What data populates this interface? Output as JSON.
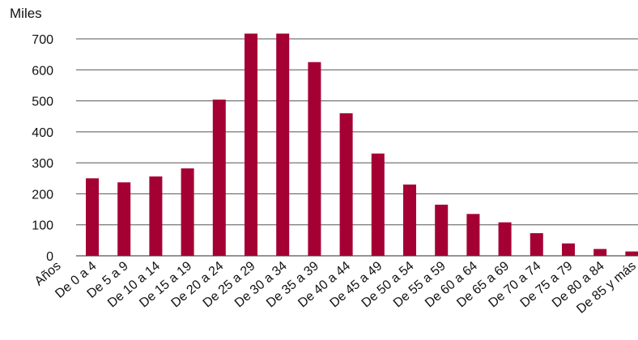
{
  "colors": {
    "bar": "#A50034",
    "grid": "#555555",
    "text": "#111111",
    "background": "#ffffff"
  },
  "chart_data": {
    "type": "bar",
    "title": "",
    "ylabel": "Miles",
    "xlabel": "Años",
    "ylim": [
      0,
      700
    ],
    "yticks": [
      0,
      100,
      200,
      300,
      400,
      500,
      600,
      700
    ],
    "grid": true,
    "legend": "none",
    "categories": [
      "De 0 a 4",
      "De 5 a 9",
      "De 10 a 14",
      "De 15 a 19",
      "De 20 a 24",
      "De 25 a 29",
      "De 30 a 34",
      "De 35 a 39",
      "De 40 a 44",
      "De 45 a 49",
      "De 50 a 54",
      "De 55 a 59",
      "De 60 a 64",
      "De 65 a 69",
      "De 70 a 74",
      "De 75 a 79",
      "De 80 a 84",
      "De 85 y más"
    ],
    "values": [
      250,
      237,
      256,
      282,
      504,
      717,
      717,
      625,
      460,
      330,
      230,
      165,
      135,
      108,
      73,
      40,
      22,
      14
    ]
  }
}
